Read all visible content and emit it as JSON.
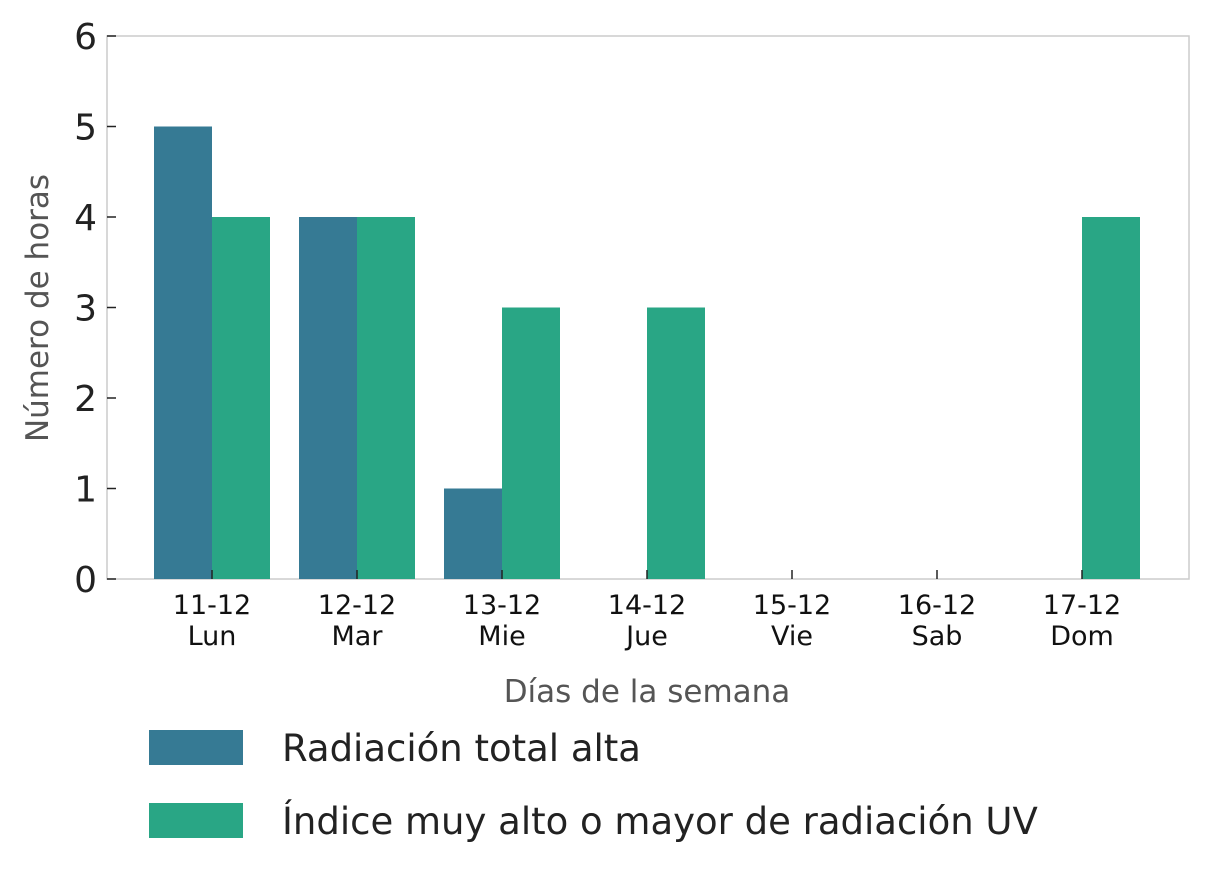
{
  "chart_data": {
    "type": "bar",
    "categories": [
      [
        "11-12",
        "Lun"
      ],
      [
        "12-12",
        "Mar"
      ],
      [
        "13-12",
        "Mie"
      ],
      [
        "14-12",
        "Jue"
      ],
      [
        "15-12",
        "Vie"
      ],
      [
        "16-12",
        "Sab"
      ],
      [
        "17-12",
        "Dom"
      ]
    ],
    "series": [
      {
        "name": "Radiación total alta",
        "color": "#367A94",
        "values": [
          5,
          4,
          1,
          0,
          0,
          0,
          0
        ]
      },
      {
        "name": "Índice muy alto o mayor de radiación UV",
        "color": "#29A685",
        "values": [
          4,
          4,
          3,
          3,
          0,
          0,
          4
        ]
      }
    ],
    "xlabel": "Días de la semana",
    "ylabel": "Número de horas",
    "ylim": [
      0,
      6
    ],
    "yticks": [
      0,
      1,
      2,
      3,
      4,
      5,
      6
    ],
    "grid": false,
    "legend_position": "bottom"
  }
}
